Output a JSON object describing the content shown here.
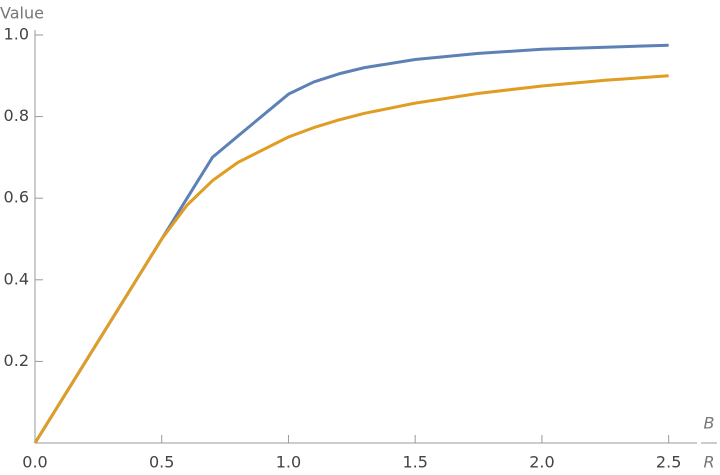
{
  "chart_data": {
    "type": "line",
    "ylabel": "Value",
    "xlabel": {
      "numerator": "B",
      "denominator": "R"
    },
    "x": [
      0,
      0.5,
      0.6,
      0.7,
      0.8,
      1.0,
      1.1,
      1.2,
      1.3,
      1.5,
      1.75,
      2.0,
      2.25,
      2.5
    ],
    "series": [
      {
        "color": "#5e81b5",
        "values": [
          0,
          0.5,
          0.6,
          0.7,
          0.752,
          0.855,
          0.885,
          0.905,
          0.92,
          0.94,
          0.955,
          0.965,
          0.97,
          0.975
        ]
      },
      {
        "color": "#e19c24",
        "values": [
          0,
          0.5,
          0.583,
          0.643,
          0.6875,
          0.75,
          0.773,
          0.792,
          0.808,
          0.833,
          0.857,
          0.875,
          0.889,
          0.9
        ]
      }
    ],
    "xlim": [
      0,
      2.6
    ],
    "ylim": [
      0,
      1.0
    ],
    "xticks": [
      {
        "value": 0,
        "label": "0.0"
      },
      0.5,
      {
        "value": 1,
        "label": "1.0"
      },
      1.5,
      {
        "value": 2,
        "label": "2.0"
      },
      2.5
    ],
    "yticks": [
      0.2,
      0.4,
      0.6,
      0.8,
      {
        "value": 1,
        "label": "1.0"
      }
    ]
  }
}
